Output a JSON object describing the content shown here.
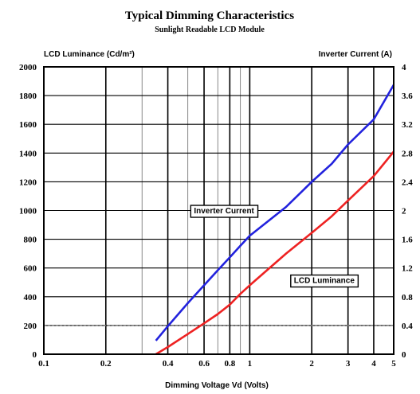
{
  "chart_data": {
    "type": "line",
    "title": "Typical Dimming Characteristics",
    "subtitle": "Sunlight Readable LCD Module",
    "xlabel": "Dimming Voltage Vd (Volts)",
    "ylabel_left": "LCD Luminance (Cd/m²)",
    "ylabel_right": "Inverter Current (A)",
    "x_scale": "log",
    "xlim": [
      0.1,
      5
    ],
    "ylim_left": [
      0,
      2000
    ],
    "ylim_right": [
      0,
      4
    ],
    "x_ticks": [
      0.1,
      0.2,
      0.4,
      0.6,
      0.8,
      1,
      2,
      3,
      4,
      5
    ],
    "x_tick_labels": [
      "0.1",
      "0.2",
      "0.4",
      "0.6",
      "0.8",
      "1",
      "2",
      "3",
      "4",
      "5"
    ],
    "y_left_ticks": [
      0,
      200,
      400,
      600,
      800,
      1000,
      1200,
      1400,
      1600,
      1800,
      2000
    ],
    "y_left_tick_labels": [
      "0",
      "200",
      "400",
      "600",
      "800",
      "1000",
      "1200",
      "1400",
      "1600",
      "1800",
      "2000"
    ],
    "y_right_ticks": [
      0,
      0.4,
      0.8,
      1.2,
      1.6,
      2,
      2.4,
      2.8,
      3.2,
      3.6,
      4
    ],
    "y_right_tick_labels": [
      "0",
      "0.4",
      "0.8",
      "1.2",
      "1.6",
      "2",
      "2.4",
      "2.8",
      "3.2",
      "3.6",
      "4"
    ],
    "grid": true,
    "reference_line": {
      "axis": "left",
      "y": 200
    },
    "series": [
      {
        "name": "Inverter Current",
        "axis": "right",
        "color": "#2222dd",
        "x": [
          0.35,
          0.4,
          0.5,
          0.6,
          0.7,
          0.8,
          0.9,
          1.0,
          1.5,
          2.0,
          2.5,
          3.0,
          4.0,
          5.0
        ],
        "y": [
          0.19,
          0.39,
          0.71,
          0.96,
          1.17,
          1.35,
          1.51,
          1.65,
          2.05,
          2.4,
          2.65,
          2.92,
          3.27,
          3.75
        ]
      },
      {
        "name": "LCD Luminance",
        "axis": "left",
        "color": "#ee2222",
        "x": [
          0.35,
          0.4,
          0.5,
          0.6,
          0.7,
          0.8,
          0.9,
          1.0,
          1.5,
          2.0,
          2.5,
          3.0,
          4.0,
          5.0
        ],
        "y": [
          0,
          50,
          140,
          215,
          280,
          345,
          420,
          480,
          700,
          845,
          960,
          1070,
          1240,
          1410
        ]
      }
    ],
    "annotations": [
      {
        "text": "Inverter Current",
        "x": 0.75,
        "y": 1000
      },
      {
        "text": "LCD Luminance",
        "x": 2.3,
        "y": 515
      }
    ]
  }
}
